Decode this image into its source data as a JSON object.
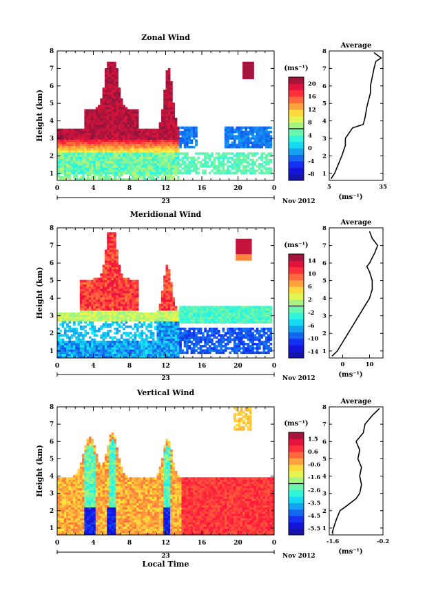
{
  "chart_data": [
    {
      "type": "heatmap",
      "title": "Zonal Wind",
      "ylabel": "Height (km)",
      "xticks": [
        "0",
        "4",
        "8",
        "12",
        "16",
        "20",
        "0"
      ],
      "yticks": [
        "1",
        "2",
        "3",
        "4",
        "5",
        "6",
        "7",
        "8"
      ],
      "ylim": [
        0.6,
        8
      ],
      "xlim": [
        0,
        24
      ],
      "date_label": "23",
      "date_suffix": "Nov 2012",
      "colorbar": {
        "unit": "(ms⁻¹)",
        "ticks": [
          "20",
          "16",
          "12",
          "8",
          "4",
          "0",
          "-4",
          "-8"
        ],
        "range": [
          -10,
          22
        ]
      },
      "average": {
        "title": "Average",
        "xticks": [
          "5",
          "35"
        ],
        "xlim": [
          5,
          35
        ],
        "unit": "(ms⁻¹)",
        "profile": [
          [
            0.7,
            6
          ],
          [
            1.0,
            8
          ],
          [
            1.5,
            10
          ],
          [
            2.0,
            12
          ],
          [
            2.3,
            13
          ],
          [
            2.6,
            14
          ],
          [
            3.0,
            14
          ],
          [
            3.3,
            16
          ],
          [
            3.6,
            18
          ],
          [
            3.8,
            24
          ],
          [
            4.2,
            25
          ],
          [
            4.8,
            26
          ],
          [
            5.2,
            27
          ],
          [
            5.6,
            28
          ],
          [
            6.0,
            28
          ],
          [
            6.5,
            29
          ],
          [
            7.0,
            30
          ],
          [
            7.4,
            31
          ],
          [
            7.6,
            34
          ],
          [
            7.9,
            30
          ]
        ]
      }
    },
    {
      "type": "heatmap",
      "title": "Meridional Wind",
      "ylabel": "Height (km)",
      "xticks": [
        "0",
        "4",
        "8",
        "12",
        "16",
        "20",
        "0"
      ],
      "yticks": [
        "1",
        "2",
        "3",
        "4",
        "5",
        "6",
        "7",
        "8"
      ],
      "ylim": [
        0.6,
        8
      ],
      "xlim": [
        0,
        24
      ],
      "date_label": "23",
      "date_suffix": "Nov 2012",
      "colorbar": {
        "unit": "(ms⁻¹)",
        "ticks": [
          "14",
          "10",
          "6",
          "2",
          "-2",
          "-6",
          "-10",
          "-14"
        ],
        "range": [
          -16,
          16
        ]
      },
      "average": {
        "title": "Average",
        "xticks": [
          "0",
          "10"
        ],
        "xlim": [
          -5,
          15
        ],
        "unit": "(ms⁻¹)",
        "profile": [
          [
            0.7,
            -4
          ],
          [
            1.0,
            -2
          ],
          [
            1.5,
            0
          ],
          [
            2.0,
            2
          ],
          [
            2.5,
            4
          ],
          [
            3.0,
            6
          ],
          [
            3.5,
            8
          ],
          [
            4.0,
            10
          ],
          [
            4.5,
            11
          ],
          [
            5.0,
            11
          ],
          [
            5.5,
            10
          ],
          [
            5.8,
            9
          ],
          [
            6.0,
            10
          ],
          [
            6.3,
            11
          ],
          [
            6.6,
            12
          ],
          [
            7.0,
            13
          ],
          [
            7.4,
            11
          ],
          [
            7.8,
            10
          ]
        ]
      }
    },
    {
      "type": "heatmap",
      "title": "Vertical Wind",
      "ylabel": "Height (km)",
      "xlabel": "Local Time",
      "xticks": [
        "0",
        "4",
        "8",
        "12",
        "16",
        "20",
        "0"
      ],
      "yticks": [
        "1",
        "2",
        "3",
        "4",
        "5",
        "6",
        "7",
        "8"
      ],
      "ylim": [
        0.6,
        8
      ],
      "xlim": [
        0,
        24
      ],
      "date_label": "23",
      "date_suffix": "Nov 2012",
      "colorbar": {
        "unit": "(ms⁻¹)",
        "ticks": [
          "1.5",
          "0.6",
          "-0.6",
          "-1.6",
          "-2.6",
          "-3.5",
          "-4.5",
          "-5.5"
        ],
        "range": [
          -6.2,
          2.0
        ]
      },
      "average": {
        "title": "Average",
        "xticks": [
          "-1.6",
          "-0.2"
        ],
        "xlim": [
          -1.7,
          -0.2
        ],
        "unit": "(ms⁻¹)",
        "profile": [
          [
            0.7,
            -1.62
          ],
          [
            1.0,
            -1.58
          ],
          [
            1.5,
            -1.5
          ],
          [
            2.0,
            -1.4
          ],
          [
            2.3,
            -1.2
          ],
          [
            2.7,
            -0.95
          ],
          [
            3.0,
            -0.85
          ],
          [
            3.5,
            -0.8
          ],
          [
            4.0,
            -0.85
          ],
          [
            4.5,
            -0.8
          ],
          [
            5.0,
            -0.9
          ],
          [
            5.5,
            -0.85
          ],
          [
            6.0,
            -0.95
          ],
          [
            6.5,
            -0.75
          ],
          [
            7.0,
            -0.7
          ],
          [
            7.5,
            -0.5
          ],
          [
            7.9,
            -0.3
          ]
        ]
      }
    }
  ]
}
